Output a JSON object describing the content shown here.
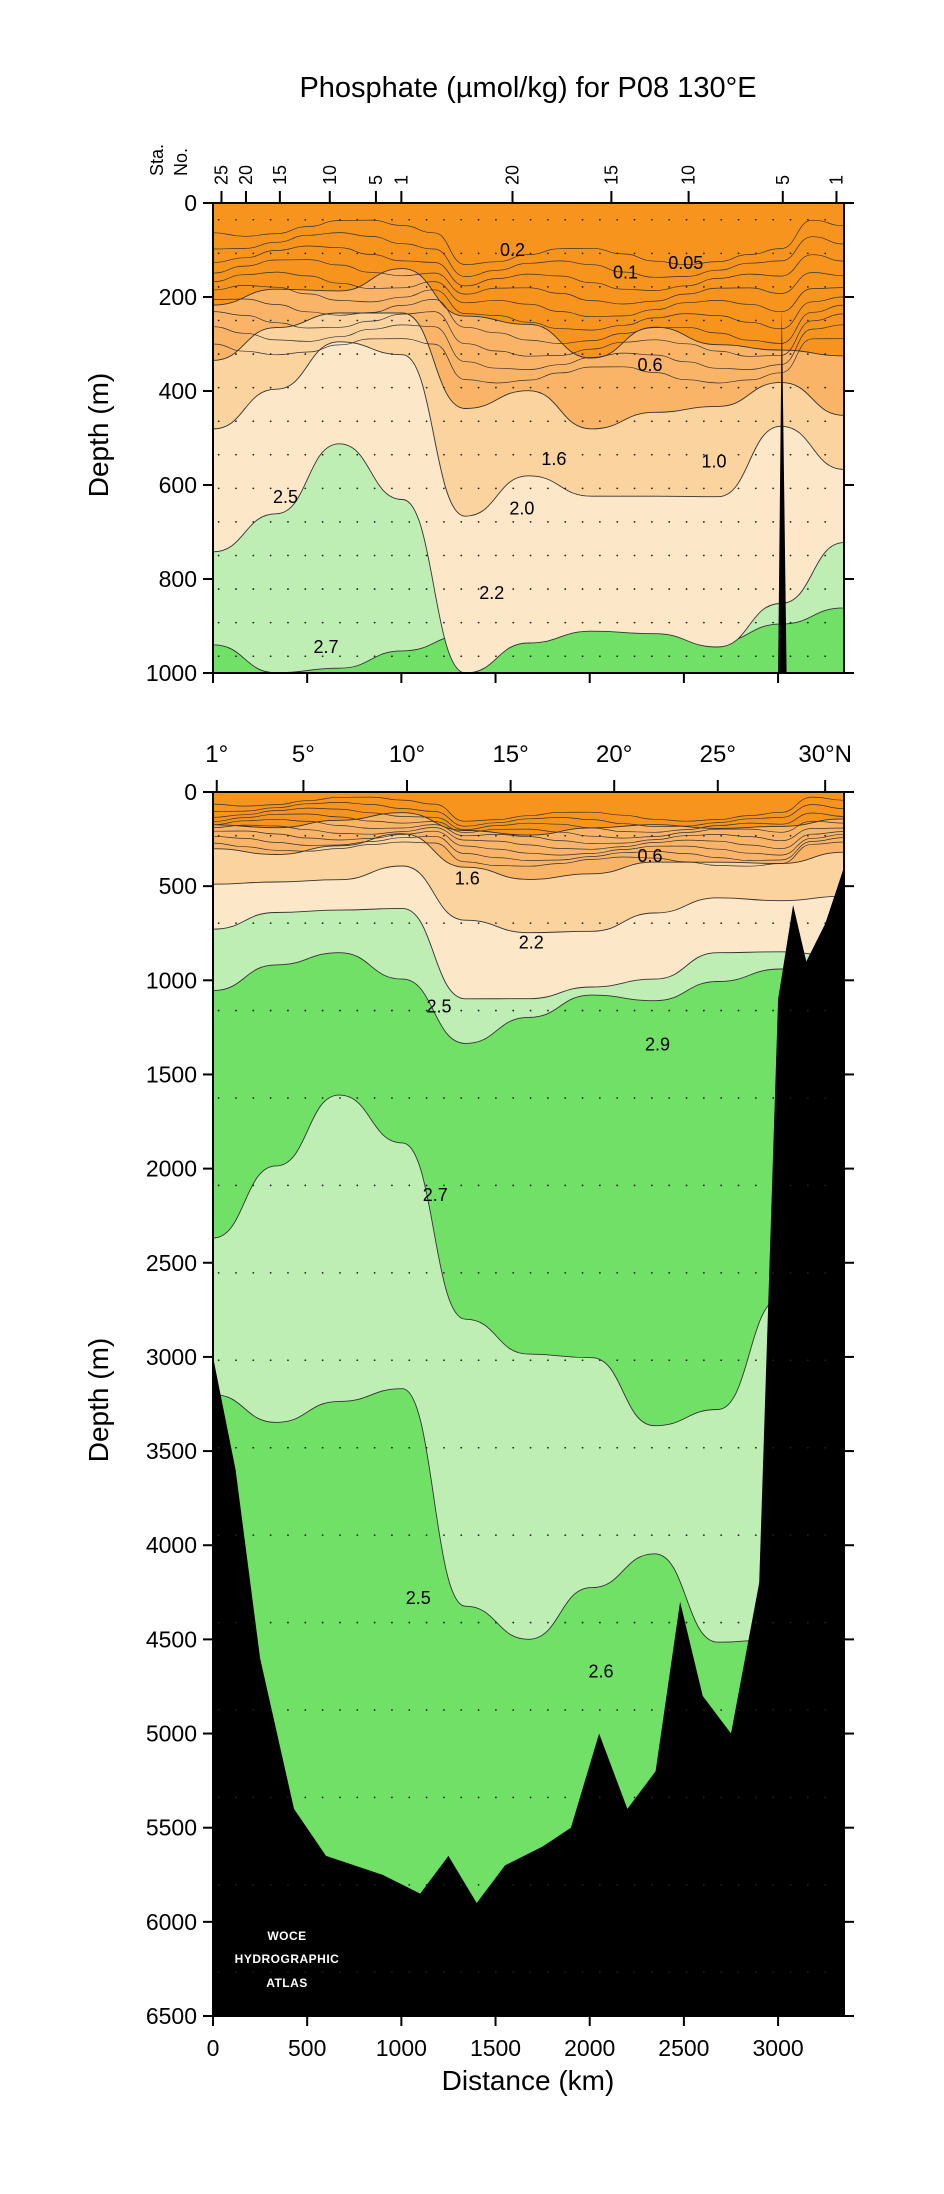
{
  "chart_data": {
    "type": "section",
    "title": "Phosphate (µmol/kg) for P08 130°E",
    "ylabel": "Depth (m)",
    "xlabel": "Distance (km)",
    "station_header": [
      "Sta.",
      "No."
    ],
    "station_ticks": [
      {
        "label": "25",
        "km": 45
      },
      {
        "label": "20",
        "km": 175
      },
      {
        "label": "15",
        "km": 355
      },
      {
        "label": "10",
        "km": 620
      },
      {
        "label": "5",
        "km": 865
      },
      {
        "label": "1",
        "km": 1000
      },
      {
        "label": "20",
        "km": 1590
      },
      {
        "label": "15",
        "km": 2115
      },
      {
        "label": "10",
        "km": 2525
      },
      {
        "label": "5",
        "km": 3025
      },
      {
        "label": "1",
        "km": 3310
      }
    ],
    "latitude_ticks": [
      {
        "label": "1°",
        "km": 20
      },
      {
        "label": "5°",
        "km": 480
      },
      {
        "label": "10°",
        "km": 1030
      },
      {
        "label": "15°",
        "km": 1580
      },
      {
        "label": "20°",
        "km": 2130
      },
      {
        "label": "25°",
        "km": 2680
      },
      {
        "label": "30°N",
        "km": 3250
      }
    ],
    "x_ticks": [
      0,
      500,
      1000,
      1500,
      2000,
      2500,
      3000
    ],
    "xlim": [
      0,
      3350
    ],
    "panels": [
      {
        "name": "upper",
        "ylim": [
          0,
          1000
        ],
        "y_ticks": [
          0,
          200,
          400,
          600,
          800,
          1000
        ],
        "contour_labels": [
          {
            "text": "0.2",
            "km": 1590,
            "depth": 100
          },
          {
            "text": "0.1",
            "km": 2190,
            "depth": 148
          },
          {
            "text": "0.05",
            "km": 2510,
            "depth": 128
          },
          {
            "text": "0.6",
            "km": 2320,
            "depth": 345
          },
          {
            "text": "1.6",
            "km": 1810,
            "depth": 545
          },
          {
            "text": "1.0",
            "km": 2660,
            "depth": 550
          },
          {
            "text": "2.5",
            "km": 385,
            "depth": 625
          },
          {
            "text": "2.0",
            "km": 1640,
            "depth": 650
          },
          {
            "text": "2.2",
            "km": 1480,
            "depth": 830
          },
          {
            "text": "2.7",
            "km": 600,
            "depth": 945
          }
        ]
      },
      {
        "name": "lower",
        "ylim": [
          0,
          6500
        ],
        "y_ticks": [
          0,
          500,
          1000,
          1500,
          2000,
          2500,
          3000,
          3500,
          4000,
          4500,
          5000,
          5500,
          6000,
          6500
        ],
        "contour_labels": [
          {
            "text": "0.6",
            "km": 2320,
            "depth": 340
          },
          {
            "text": "1.6",
            "km": 1350,
            "depth": 460
          },
          {
            "text": "2.2",
            "km": 1690,
            "depth": 800
          },
          {
            "text": "2.5",
            "km": 1200,
            "depth": 1140
          },
          {
            "text": "2.9",
            "km": 2360,
            "depth": 1340
          },
          {
            "text": "2.7",
            "km": 1180,
            "depth": 2140
          },
          {
            "text": "2.5",
            "km": 1090,
            "depth": 4280
          },
          {
            "text": "2.6",
            "km": 2060,
            "depth": 4670
          }
        ]
      }
    ],
    "color_classes": [
      {
        "name": "< 1.0",
        "color": "#f7941d"
      },
      {
        "name": "1.0 - 1.6",
        "color": "#f9b468"
      },
      {
        "name": "1.6 - 2.2",
        "color": "#fbd39e"
      },
      {
        "name": "2.2 - 2.5",
        "color": "#fde7c9"
      },
      {
        "name": "2.5 - 2.7",
        "color": "#bfeeb4"
      },
      {
        "name": "> 2.7",
        "color": "#70e066"
      }
    ],
    "bottom_color": "#000000",
    "watermark": [
      "WOCE",
      "HYDROGRAPHIC",
      "ATLAS"
    ]
  }
}
